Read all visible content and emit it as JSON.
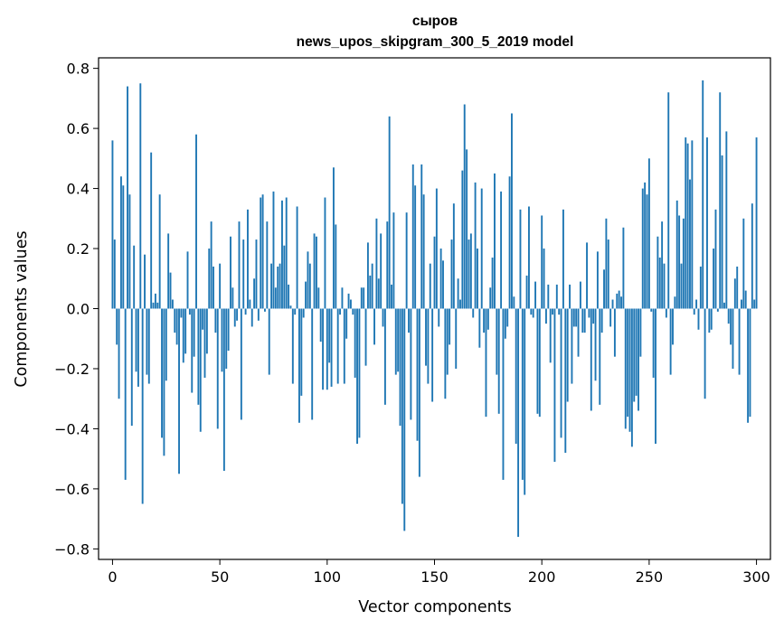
{
  "chart_data": {
    "type": "bar",
    "title": "сыров",
    "subtitle": "news_upos_skipgram_300_5_2019 model",
    "xlabel": "Vector components",
    "ylabel": "Components values",
    "xlim": [
      -6.5,
      306.5
    ],
    "ylim": [
      -0.835,
      0.835
    ],
    "xticks": [
      0,
      50,
      100,
      150,
      200,
      250,
      300
    ],
    "yticks": [
      -0.8,
      -0.6,
      -0.4,
      -0.2,
      0.0,
      0.2,
      0.4,
      0.6,
      0.8
    ],
    "xtick_labels": [
      "0",
      "50",
      "100",
      "150",
      "200",
      "250",
      "300"
    ],
    "ytick_labels": [
      "−0.8",
      "−0.6",
      "−0.4",
      "−0.2",
      "0.0",
      "0.2",
      "0.4",
      "0.6",
      "0.8"
    ],
    "bar_color": "#1f77b4",
    "grid": false,
    "x_start": 0,
    "values": [
      0.56,
      0.23,
      -0.12,
      -0.3,
      0.44,
      0.41,
      -0.57,
      0.74,
      0.38,
      -0.39,
      0.21,
      -0.21,
      -0.26,
      0.75,
      -0.65,
      0.18,
      -0.22,
      -0.25,
      0.52,
      0.02,
      0.05,
      0.02,
      0.38,
      -0.43,
      -0.49,
      -0.24,
      0.25,
      0.12,
      0.03,
      -0.08,
      -0.12,
      -0.55,
      -0.03,
      -0.18,
      -0.15,
      0.19,
      -0.02,
      -0.28,
      -0.16,
      0.58,
      -0.32,
      -0.41,
      -0.07,
      -0.23,
      -0.15,
      0.2,
      0.29,
      0.14,
      -0.08,
      -0.4,
      0.15,
      -0.21,
      -0.54,
      -0.2,
      -0.14,
      0.24,
      0.07,
      -0.06,
      -0.04,
      0.29,
      -0.37,
      0.23,
      -0.02,
      0.33,
      0.03,
      -0.06,
      0.1,
      0.23,
      -0.04,
      0.37,
      0.38,
      -0.01,
      0.29,
      -0.22,
      0.15,
      0.39,
      0.07,
      0.14,
      0.15,
      0.36,
      0.21,
      0.37,
      0.08,
      0.01,
      -0.25,
      -0.02,
      0.34,
      -0.38,
      -0.29,
      -0.03,
      0.09,
      0.19,
      0.15,
      -0.37,
      0.25,
      0.24,
      0.07,
      -0.11,
      -0.27,
      0.37,
      -0.27,
      -0.18,
      -0.26,
      0.47,
      0.28,
      -0.25,
      -0.02,
      0.07,
      -0.25,
      -0.1,
      0.05,
      0.03,
      -0.02,
      -0.23,
      -0.45,
      -0.43,
      0.07,
      0.07,
      -0.19,
      0.22,
      0.11,
      0.15,
      -0.12,
      0.3,
      0.1,
      0.25,
      -0.06,
      -0.32,
      0.29,
      0.64,
      0.08,
      0.32,
      -0.22,
      -0.21,
      -0.39,
      -0.65,
      -0.74,
      0.32,
      -0.08,
      -0.37,
      0.48,
      0.41,
      -0.44,
      -0.56,
      0.48,
      0.38,
      -0.19,
      -0.25,
      0.15,
      -0.31,
      0.24,
      0.4,
      -0.06,
      0.2,
      0.16,
      -0.3,
      -0.22,
      -0.12,
      0.23,
      0.35,
      -0.2,
      0.1,
      0.03,
      0.46,
      0.68,
      0.53,
      0.23,
      0.25,
      -0.03,
      0.42,
      0.2,
      -0.13,
      0.4,
      -0.08,
      -0.36,
      -0.07,
      0.07,
      0.17,
      0.45,
      -0.22,
      -0.35,
      0.39,
      -0.57,
      -0.1,
      -0.06,
      0.44,
      0.65,
      0.04,
      -0.45,
      -0.76,
      0.33,
      -0.57,
      -0.62,
      0.11,
      0.34,
      -0.02,
      -0.03,
      0.09,
      -0.35,
      -0.36,
      0.31,
      0.2,
      -0.05,
      0.08,
      -0.18,
      -0.02,
      -0.51,
      0.08,
      -0.02,
      -0.43,
      0.33,
      -0.48,
      -0.31,
      0.08,
      -0.25,
      -0.06,
      -0.06,
      -0.16,
      0.09,
      -0.08,
      -0.08,
      0.22,
      -0.03,
      -0.34,
      -0.05,
      -0.24,
      0.19,
      -0.32,
      -0.08,
      0.13,
      0.3,
      0.23,
      -0.06,
      0.03,
      -0.16,
      0.05,
      0.06,
      0.04,
      0.27,
      -0.4,
      -0.36,
      -0.41,
      -0.46,
      -0.31,
      -0.29,
      -0.34,
      -0.16,
      0.4,
      0.42,
      0.38,
      0.5,
      -0.01,
      -0.23,
      -0.45,
      0.24,
      0.17,
      0.29,
      0.15,
      -0.03,
      0.72,
      -0.22,
      -0.12,
      0.04,
      0.36,
      0.31,
      0.15,
      0.3,
      0.57,
      0.55,
      0.43,
      0.56,
      -0.02,
      0.03,
      -0.07,
      0.14,
      0.76,
      -0.3,
      0.57,
      -0.08,
      -0.07,
      0.2,
      0.33,
      -0.01,
      0.72,
      0.51,
      0.02,
      0.59,
      -0.05,
      -0.12,
      -0.2,
      0.1,
      0.14,
      -0.22,
      0.03,
      0.3,
      0.06,
      -0.38,
      -0.36,
      0.35,
      0.03,
      0.57
    ]
  }
}
